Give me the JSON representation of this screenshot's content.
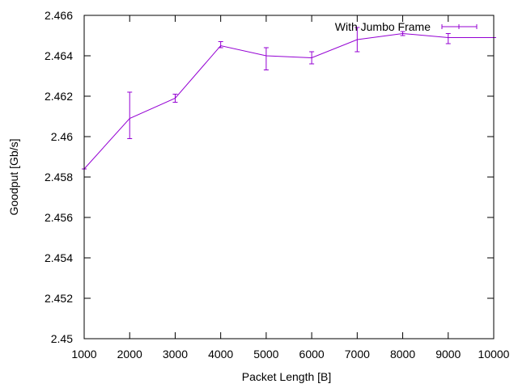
{
  "chart_data": {
    "type": "line",
    "title": "",
    "xlabel": "Packet Length [B]",
    "ylabel": "Goodput [Gb/s]",
    "xlim": [
      1000,
      10000
    ],
    "ylim": [
      2.45,
      2.466
    ],
    "xticks": [
      "1000",
      "2000",
      "3000",
      "4000",
      "5000",
      "6000",
      "7000",
      "8000",
      "9000",
      "10000"
    ],
    "yticks": [
      "2.45",
      "2.452",
      "2.454",
      "2.456",
      "2.458",
      "2.46",
      "2.462",
      "2.464",
      "2.466"
    ],
    "grid": false,
    "legend_position": "top-right",
    "series": [
      {
        "name": "With Jumbo Frame",
        "color": "#9400d3",
        "x": [
          1000,
          2000,
          3000,
          4000,
          5000,
          6000,
          7000,
          8000,
          9000,
          10000
        ],
        "y": [
          2.4584,
          2.4609,
          2.4619,
          2.4645,
          2.464,
          2.4639,
          2.4648,
          2.4651,
          2.4649,
          2.4649
        ],
        "err_low": [
          2.4584,
          2.4599,
          2.4617,
          2.4644,
          2.4633,
          2.4636,
          2.4642,
          2.465,
          2.4646,
          2.4649
        ],
        "err_high": [
          2.4584,
          2.4622,
          2.4621,
          2.4647,
          2.4644,
          2.4642,
          2.4654,
          2.4652,
          2.4651,
          2.4649
        ]
      }
    ]
  }
}
